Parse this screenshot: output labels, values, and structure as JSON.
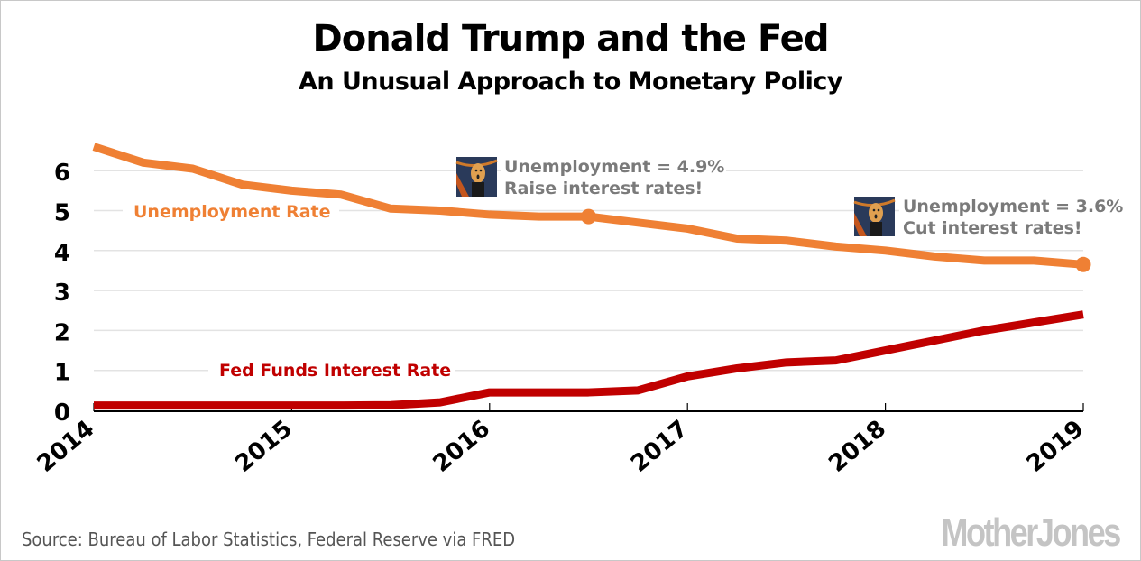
{
  "chart_data": {
    "type": "line",
    "title": "Donald Trump and the Fed",
    "subtitle": "An Unusual Approach to Monetary Policy",
    "xlabel": "",
    "ylabel": "",
    "xlim": [
      2014,
      2019
    ],
    "ylim": [
      0,
      7
    ],
    "x_ticks": [
      "2014",
      "2015",
      "2016",
      "2017",
      "2018",
      "2019"
    ],
    "y_ticks": [
      "0",
      "1",
      "2",
      "3",
      "4",
      "5",
      "6"
    ],
    "grid": true,
    "x": [
      2014.0,
      2014.25,
      2014.5,
      2014.75,
      2015.0,
      2015.25,
      2015.5,
      2015.75,
      2016.0,
      2016.25,
      2016.5,
      2016.75,
      2017.0,
      2017.25,
      2017.5,
      2017.75,
      2018.0,
      2018.25,
      2018.5,
      2018.75,
      2019.0
    ],
    "series": [
      {
        "name": "Unemployment Rate",
        "color": "#ef8034",
        "values": [
          6.6,
          6.2,
          6.05,
          5.65,
          5.5,
          5.4,
          5.05,
          5.0,
          4.9,
          4.85,
          4.85,
          4.7,
          4.55,
          4.3,
          4.25,
          4.1,
          4.0,
          3.85,
          3.75,
          3.75,
          3.65
        ]
      },
      {
        "name": "Fed Funds Interest Rate",
        "color": "#c00000",
        "values": [
          0.12,
          0.12,
          0.12,
          0.12,
          0.12,
          0.12,
          0.13,
          0.2,
          0.45,
          0.45,
          0.45,
          0.5,
          0.85,
          1.05,
          1.2,
          1.25,
          1.5,
          1.75,
          2.0,
          2.2,
          2.4
        ]
      }
    ],
    "annotations": [
      {
        "line1": "Unemployment = 4.9%",
        "line2": "Raise interest rates!",
        "x": 2016.5,
        "y": 4.85,
        "icon": "scream-painting-icon"
      },
      {
        "line1": "Unemployment = 3.6%",
        "line2": "Cut interest rates!",
        "x": 2019.0,
        "y": 3.65,
        "icon": "scream-painting-icon"
      }
    ],
    "series_labels": [
      {
        "text": "Unemployment Rate",
        "series": 0
      },
      {
        "text": "Fed Funds Interest Rate",
        "series": 1
      }
    ],
    "annotation_text_color": "#7a7a7a"
  },
  "footer": {
    "source": "Source: Bureau of Labor Statistics, Federal Reserve via FRED",
    "logo": "MotherJones"
  }
}
